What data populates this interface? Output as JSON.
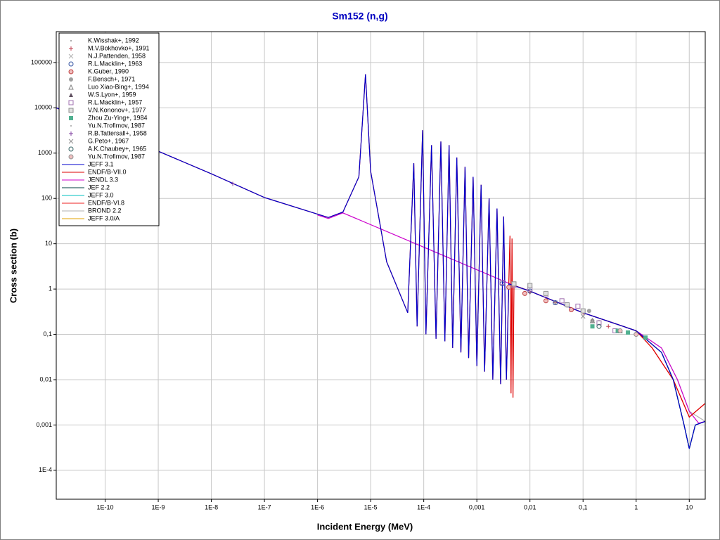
{
  "chart_data": {
    "type": "line",
    "title": "Sm152 (n,g)",
    "x_label": "Incident Energy (MeV)",
    "y_label": "Cross section (b)",
    "log_x": true,
    "log_y": true,
    "grid": true,
    "legend": "upper left",
    "xlim": [
      1.2e-11,
      20
    ],
    "ylim": [
      2.3e-05,
      480000
    ],
    "xticks": [
      {
        "value": 1e-10,
        "label": "1E-10"
      },
      {
        "value": 1e-09,
        "label": "1E-9"
      },
      {
        "value": 1e-08,
        "label": "1E-8"
      },
      {
        "value": 1e-07,
        "label": "1E-7"
      },
      {
        "value": 1e-06,
        "label": "1E-6"
      },
      {
        "value": 1e-05,
        "label": "1E-5"
      },
      {
        "value": 0.0001,
        "label": "1E-4"
      },
      {
        "value": 0.001,
        "label": "0,001"
      },
      {
        "value": 0.01,
        "label": "0,01"
      },
      {
        "value": 0.1,
        "label": "0,1"
      },
      1,
      10
    ],
    "yticks": [
      {
        "value": 0.0001,
        "label": "1E-4"
      },
      {
        "value": 0.001,
        "label": "0,001"
      },
      {
        "value": 0.01,
        "label": "0,01"
      },
      {
        "value": 0.1,
        "label": "0,1"
      },
      1,
      10,
      100,
      1000,
      10000,
      100000
    ],
    "series": [
      {
        "name": "K.Wisshak+, 1992",
        "color": "#909090",
        "marker": "dot",
        "x": [
          0.01,
          0.02,
          0.05,
          0.1,
          0.2
        ],
        "values": [
          0.8,
          0.6,
          0.4,
          0.3,
          0.2
        ]
      },
      {
        "name": "M.V.Bokhovko+, 1991",
        "color": "#c04050",
        "marker": "plus",
        "x": [
          0.005,
          0.01,
          0.03,
          0.1,
          0.3
        ],
        "values": [
          1.2,
          0.85,
          0.5,
          0.3,
          0.15
        ]
      },
      {
        "name": "N.J.Pattenden, 1958",
        "color": "#b0b0b0",
        "marker": "cross",
        "x": [
          0.03
        ],
        "values": [
          0.5
        ]
      },
      {
        "name": "R.L.Macklin+, 1963",
        "color": "#3050a0",
        "marker": "circle",
        "x": [
          0.003,
          0.01,
          0.03
        ],
        "values": [
          1.3,
          0.9,
          0.5
        ]
      },
      {
        "name": "K.Guber, 1990",
        "color": "#c04040",
        "marker": "circlex",
        "x": [
          0.004,
          0.008,
          0.02,
          0.06
        ],
        "values": [
          1.1,
          0.8,
          0.55,
          0.35
        ]
      },
      {
        "name": "F.Bensch+, 1971",
        "color": "#a0a0a0",
        "marker": "fcircle",
        "x": [
          0.13,
          0.15
        ],
        "values": [
          0.33,
          0.2
        ]
      },
      {
        "name": "Luo Xiao-Bing+, 1994",
        "color": "#808080",
        "marker": "triangle",
        "x": [
          0.15,
          0.5
        ],
        "values": [
          0.2,
          0.12
        ]
      },
      {
        "name": "W.S.Lyon+, 1959",
        "color": "#605060",
        "marker": "ftriangle",
        "x": [
          1
        ],
        "values": [
          0.11
        ]
      },
      {
        "name": "R.L.Macklin+, 1957",
        "color": "#a070b0",
        "marker": "square",
        "x": [
          0.003,
          0.005,
          0.01,
          0.02,
          0.04,
          0.08,
          0.2,
          0.4
        ],
        "values": [
          1.4,
          1.2,
          1.0,
          0.75,
          0.55,
          0.42,
          0.18,
          0.12
        ]
      },
      {
        "name": "V.N.Kononov+, 1977",
        "color": "#909090",
        "marker": "squarex",
        "x": [
          0.005,
          0.01,
          0.02,
          0.05,
          0.1
        ],
        "values": [
          1.3,
          1.2,
          0.8,
          0.45,
          0.33
        ]
      },
      {
        "name": "Zhou Zu-Ying+, 1984",
        "color": "#50b090",
        "marker": "fsquare",
        "x": [
          0.15,
          0.45,
          0.7,
          1.5
        ],
        "values": [
          0.15,
          0.12,
          0.11,
          0.085
        ]
      },
      {
        "name": "Yu.N.Trofimov, 1987",
        "color": "#a0a0a0",
        "marker": "dot",
        "x": [
          0.03,
          0.5
        ],
        "values": [
          0.5,
          0.12
        ]
      },
      {
        "name": "R.B.Tattersall+, 1958",
        "color": "#8040a0",
        "marker": "plus",
        "x": [
          2.53e-08
        ],
        "values": [
          210
        ]
      },
      {
        "name": "G.Peto+, 1967",
        "color": "#909090",
        "marker": "cross",
        "x": [
          0.1
        ],
        "values": [
          0.25
        ]
      },
      {
        "name": "A.K.Chaubey+, 1965",
        "color": "#306060",
        "marker": "circle",
        "x": [
          0.2
        ],
        "values": [
          0.15
        ]
      },
      {
        "name": "Yu.N.Trofimov, 1987",
        "color": "#909090",
        "marker": "circlex",
        "x": [
          0.5,
          1
        ],
        "values": [
          0.12,
          0.1
        ]
      },
      {
        "name": "JEFF 3.1",
        "color": "#0000cc",
        "x": [
          1.2e-11,
          1e-10,
          1e-09,
          1e-08,
          1e-07,
          1e-06,
          1.6e-06,
          3e-06,
          6e-06,
          8e-06,
          1e-05,
          2e-05,
          5e-05,
          6.5e-05,
          7.5e-05,
          9.5e-05,
          0.00011,
          0.00014,
          0.00017,
          0.00021,
          0.00025,
          0.0003,
          0.00035,
          0.00042,
          0.0005,
          0.0006,
          0.0007,
          0.00085,
          0.001,
          0.0012,
          0.0014,
          0.0017,
          0.002,
          0.0024,
          0.0028,
          0.0032,
          0.0036,
          0.004,
          0.01,
          0.1,
          1,
          3,
          5,
          8,
          10,
          13,
          20
        ],
        "values": [
          10000,
          3500,
          1100,
          350,
          105,
          45,
          38,
          50,
          300,
          55000,
          400,
          4,
          0.3,
          600,
          0.15,
          3200,
          0.1,
          1500,
          0.08,
          1800,
          0.07,
          1500,
          0.05,
          800,
          0.04,
          500,
          0.03,
          300,
          0.02,
          200,
          0.015,
          100,
          0.01,
          60,
          0.008,
          40,
          0.01,
          1.3,
          0.9,
          0.3,
          0.12,
          0.04,
          0.01,
          0.001,
          0.0003,
          0.001,
          0.0012
        ]
      },
      {
        "name": "ENDF/B-VII.0",
        "color": "#dd0000",
        "x": [
          1.2e-11,
          1e-10,
          1e-09,
          1e-08,
          1e-07,
          1e-06,
          1.6e-06,
          3e-06,
          6e-06,
          8e-06,
          1e-05,
          2e-05,
          5e-05,
          6.5e-05,
          7.5e-05,
          9.5e-05,
          0.00011,
          0.00014,
          0.00017,
          0.00021,
          0.00025,
          0.0003,
          0.00035,
          0.00042,
          0.0005,
          0.0006,
          0.0007,
          0.00085,
          0.001,
          0.0012,
          0.0014,
          0.0017,
          0.002,
          0.0024,
          0.0028,
          0.0032,
          0.0036,
          0.0042,
          0.0044,
          0.0046,
          0.0048,
          0.005,
          0.01,
          0.1,
          1,
          2,
          5,
          10,
          20
        ],
        "values": [
          10000,
          3500,
          1100,
          350,
          105,
          45,
          38,
          50,
          300,
          55000,
          400,
          4,
          0.3,
          600,
          0.15,
          3200,
          0.1,
          1500,
          0.08,
          1800,
          0.07,
          1500,
          0.05,
          800,
          0.04,
          500,
          0.03,
          300,
          0.02,
          200,
          0.015,
          100,
          0.01,
          60,
          0.008,
          40,
          0.01,
          15,
          0.005,
          13,
          0.004,
          1.2,
          0.9,
          0.3,
          0.12,
          0.05,
          0.01,
          0.0015,
          0.003
        ]
      },
      {
        "name": "JENDL 3.3",
        "color": "#cc00cc",
        "x": [
          1e-06,
          1.6e-06,
          3e-06,
          0.005,
          0.01,
          0.1,
          1,
          3,
          6,
          10,
          15,
          20
        ],
        "values": [
          43,
          36,
          48,
          1.2,
          0.9,
          0.3,
          0.12,
          0.05,
          0.01,
          0.002,
          0.0011,
          0.0012
        ]
      },
      {
        "name": "JEF 2.2",
        "color": "#004040",
        "x": [
          0.005,
          0.01,
          0.1,
          1,
          3,
          5,
          8,
          10,
          13,
          20
        ],
        "values": [
          1.2,
          0.9,
          0.3,
          0.12,
          0.04,
          0.01,
          0.001,
          0.0003,
          0.001,
          0.0012
        ]
      },
      {
        "name": "JEFF 3.0",
        "color": "#00c0c0",
        "x": [
          0.005,
          0.01,
          0.1,
          1,
          3,
          5,
          8,
          10,
          13,
          20
        ],
        "values": [
          1.2,
          0.9,
          0.3,
          0.12,
          0.04,
          0.01,
          0.001,
          0.0003,
          0.001,
          0.0012
        ]
      },
      {
        "name": "ENDF/B-VI.8",
        "color": "#ee2020",
        "x": [
          0.005,
          0.01,
          0.1,
          1,
          2,
          5,
          10,
          20
        ],
        "values": [
          1.2,
          0.9,
          0.3,
          0.12,
          0.05,
          0.01,
          0.0015,
          0.003
        ]
      },
      {
        "name": "BROND 2.2",
        "color": "#b0b0b0",
        "x": [
          0.005,
          0.01,
          0.1,
          1,
          3,
          6,
          10,
          20
        ],
        "values": [
          1.2,
          0.9,
          0.3,
          0.12,
          0.05,
          0.01,
          0.002,
          0.0012
        ]
      },
      {
        "name": "JEFF 3.0/A",
        "color": "#e0a000",
        "x": [
          0.005,
          0.01,
          0.1,
          1,
          3,
          5,
          8,
          10,
          13,
          20
        ],
        "values": [
          1.2,
          0.9,
          0.3,
          0.12,
          0.04,
          0.01,
          0.001,
          0.0003,
          0.001,
          0.0012
        ]
      }
    ]
  }
}
